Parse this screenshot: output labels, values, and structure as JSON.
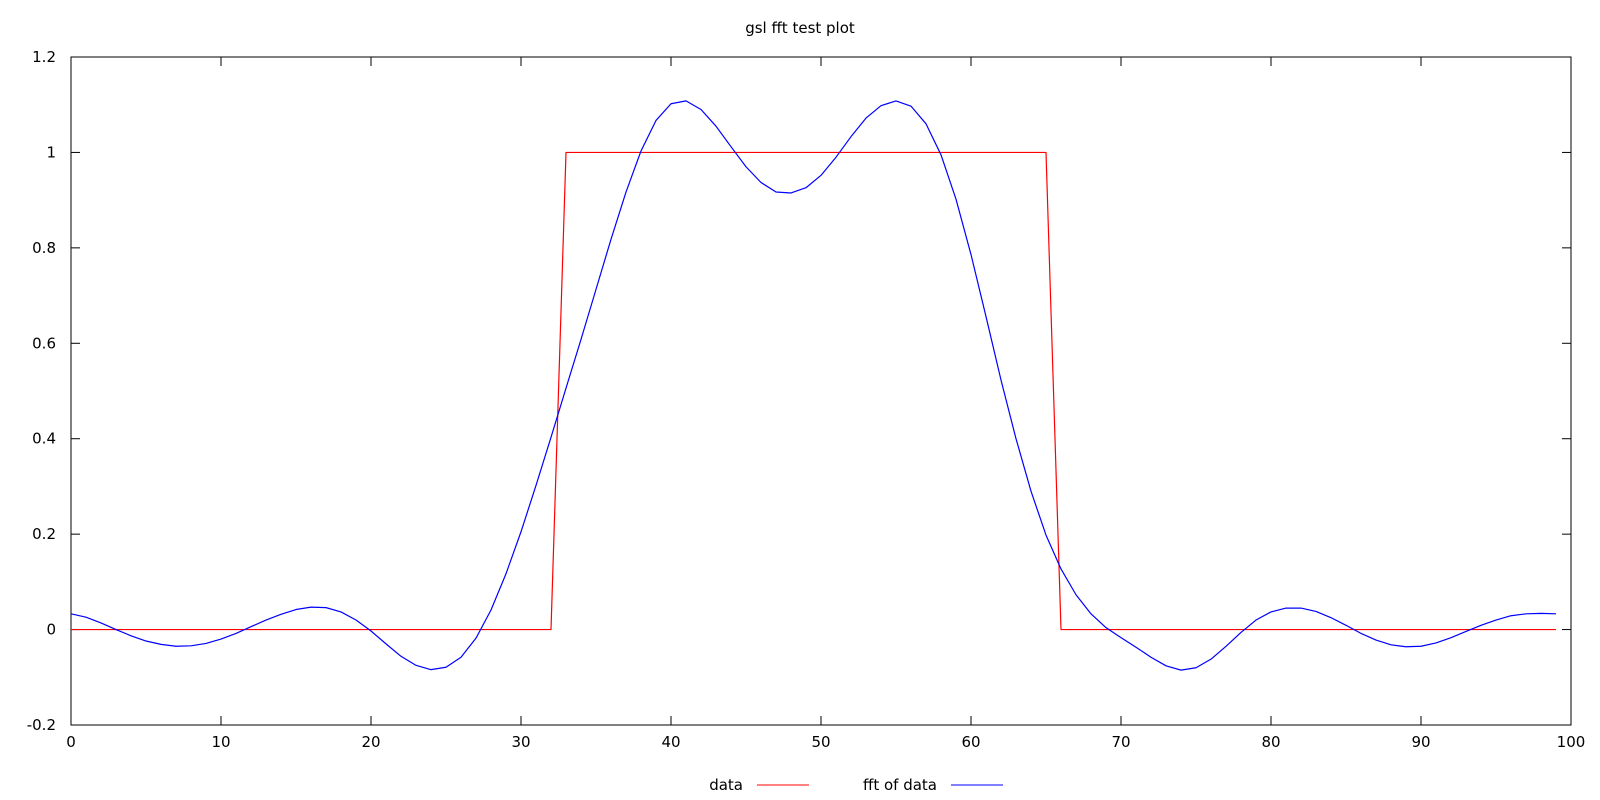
{
  "chart_data": {
    "type": "line",
    "title": "gsl fft test plot",
    "xlabel": "",
    "ylabel": "",
    "xlim": [
      0,
      100
    ],
    "ylim": [
      -0.2,
      1.2
    ],
    "x_ticks": [
      0,
      10,
      20,
      30,
      40,
      50,
      60,
      70,
      80,
      90,
      100
    ],
    "x_tick_labels": [
      "0",
      "10",
      "20",
      "30",
      "40",
      "50",
      "60",
      "70",
      "80",
      "90",
      "100"
    ],
    "y_ticks": [
      -0.2,
      0,
      0.2,
      0.4,
      0.6,
      0.8,
      1,
      1.2
    ],
    "y_tick_labels": [
      "-0.2",
      "0",
      "0.2",
      "0.4",
      "0.6",
      "0.8",
      "1",
      "1.2"
    ],
    "grid": false,
    "legend_position": "bottom-center",
    "series": [
      {
        "name": "data",
        "color": "#ff0000",
        "x": [
          0,
          32,
          33,
          65,
          66,
          99
        ],
        "y": [
          0,
          0,
          1,
          1,
          0,
          0
        ]
      },
      {
        "name": "fft of data",
        "color": "#0000ff",
        "x": [
          0,
          1,
          2,
          3,
          4,
          5,
          6,
          7,
          8,
          9,
          10,
          11,
          12,
          13,
          14,
          15,
          16,
          17,
          18,
          19,
          20,
          21,
          22,
          23,
          24,
          25,
          26,
          27,
          28,
          29,
          30,
          31,
          32,
          33,
          34,
          35,
          36,
          37,
          38,
          39,
          40,
          41,
          42,
          43,
          44,
          45,
          46,
          47,
          48,
          49,
          50,
          51,
          52,
          53,
          54,
          55,
          56,
          57,
          58,
          59,
          60,
          61,
          62,
          63,
          64,
          65,
          66,
          67,
          68,
          69,
          70,
          71,
          72,
          73,
          74,
          75,
          76,
          77,
          78,
          79,
          80,
          81,
          82,
          83,
          84,
          85,
          86,
          87,
          88,
          89,
          90,
          91,
          92,
          93,
          94,
          95,
          96,
          97,
          98,
          99
        ],
        "y": [
          0.033,
          0.026,
          0.014,
          0.0,
          -0.013,
          -0.024,
          -0.031,
          -0.035,
          -0.034,
          -0.029,
          -0.02,
          -0.008,
          0.006,
          0.02,
          0.032,
          0.042,
          0.047,
          0.046,
          0.037,
          0.02,
          -0.003,
          -0.03,
          -0.056,
          -0.075,
          -0.084,
          -0.079,
          -0.058,
          -0.018,
          0.041,
          0.117,
          0.205,
          0.302,
          0.403,
          0.506,
          0.608,
          0.713,
          0.818,
          0.917,
          1.003,
          1.067,
          1.102,
          1.108,
          1.09,
          1.055,
          1.012,
          0.97,
          0.937,
          0.917,
          0.915,
          0.926,
          0.952,
          0.99,
          1.033,
          1.072,
          1.098,
          1.108,
          1.097,
          1.06,
          0.995,
          0.902,
          0.786,
          0.656,
          0.523,
          0.4,
          0.29,
          0.198,
          0.127,
          0.073,
          0.033,
          0.004,
          -0.017,
          -0.037,
          -0.058,
          -0.076,
          -0.085,
          -0.08,
          -0.062,
          -0.035,
          -0.006,
          0.02,
          0.037,
          0.045,
          0.045,
          0.038,
          0.025,
          0.009,
          -0.008,
          -0.022,
          -0.032,
          -0.036,
          -0.035,
          -0.028,
          -0.017,
          -0.004,
          0.009,
          0.02,
          0.029,
          0.033,
          0.034,
          0.033
        ]
      }
    ]
  }
}
